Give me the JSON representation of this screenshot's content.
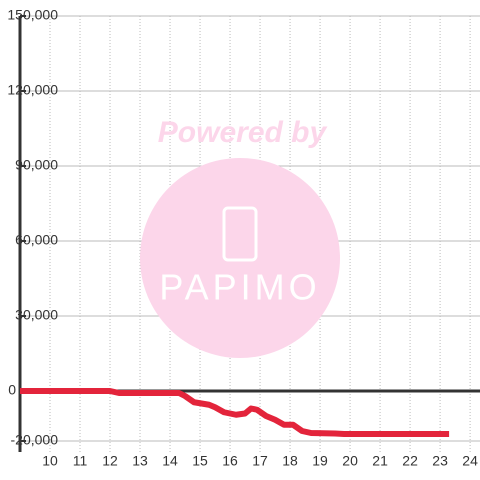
{
  "chart_data": {
    "type": "line",
    "watermark": [
      "Powered by",
      "PAPIMO"
    ],
    "x": [
      9,
      12,
      12.3,
      14.3,
      14.5,
      14.8,
      15.3,
      15.5,
      15.8,
      16.2,
      16.5,
      16.7,
      16.9,
      17.2,
      17.5,
      17.8,
      18.1,
      18.4,
      18.7,
      19.5,
      19.8,
      23.3
    ],
    "series": [
      {
        "color": "#e3243b",
        "values": [
          0,
          0,
          -800,
          -800,
          -2000,
          -4500,
          -5500,
          -6500,
          -8500,
          -9500,
          -9000,
          -7000,
          -7500,
          -10000,
          -11500,
          -13500,
          -13500,
          -16000,
          -16800,
          -17000,
          -17200,
          -17200
        ]
      }
    ],
    "xlim": [
      9,
      24.33
    ],
    "xticks": [
      10,
      11,
      12,
      13,
      14,
      15,
      16,
      17,
      18,
      19,
      20,
      21,
      22,
      23,
      24
    ],
    "ylim": [
      -20000,
      150000
    ],
    "yticks": [
      {
        "value": -20000,
        "label": "-20,000"
      },
      0,
      {
        "value": 30000,
        "label": "30,000"
      },
      {
        "value": 60000,
        "label": "60,000"
      },
      {
        "value": 90000,
        "label": "90,000"
      },
      {
        "value": 120000,
        "label": "120,000"
      },
      {
        "value": 150000,
        "label": "150,000"
      }
    ],
    "grid": true
  }
}
